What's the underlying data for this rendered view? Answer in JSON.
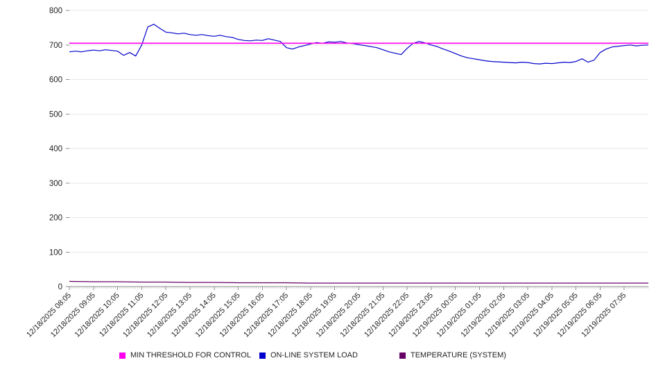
{
  "chart_data": {
    "type": "line",
    "title": "",
    "xlabel": "",
    "ylabel": "",
    "ylim": [
      0,
      800
    ],
    "y_ticks": [
      0,
      100,
      200,
      300,
      400,
      500,
      600,
      700,
      800
    ],
    "grid": "horizontal",
    "legend_position": "bottom",
    "domain_hours": 24,
    "x_minor_tick_minutes": 5,
    "x_tick_labels": [
      "12/18/2025 08:05",
      "12/18/2025 09:05",
      "12/18/2025 10:05",
      "12/18/2025 11:05",
      "12/18/2025 12:05",
      "12/18/2025 13:05",
      "12/18/2025 14:05",
      "12/18/2025 15:05",
      "12/18/2025 16:05",
      "12/18/2025 17:05",
      "12/18/2025 18:05",
      "12/18/2025 19:05",
      "12/18/2025 20:05",
      "12/18/2025 21:05",
      "12/18/2025 22:05",
      "12/18/2025 23:05",
      "12/19/2025 00:05",
      "12/19/2025 01:05",
      "12/19/2025 02:05",
      "12/19/2025 03:05",
      "12/19/2025 04:05",
      "12/19/2025 05:05",
      "12/19/2025 06:05",
      "12/19/2025 07:05"
    ],
    "series": [
      {
        "name": "MIN THRESHOLD FOR CONTROL",
        "color": "#ff00ee",
        "value": 705
      },
      {
        "name": "ON-LINE SYSTEM LOAD",
        "color": "#0000cc",
        "step_minutes": 15,
        "values": [
          680,
          682,
          680,
          683,
          685,
          683,
          686,
          684,
          682,
          670,
          678,
          668,
          700,
          752,
          760,
          748,
          737,
          735,
          732,
          734,
          730,
          728,
          730,
          727,
          725,
          728,
          724,
          722,
          716,
          713,
          712,
          714,
          713,
          718,
          714,
          710,
          692,
          688,
          694,
          698,
          703,
          707,
          705,
          709,
          708,
          710,
          706,
          704,
          701,
          698,
          695,
          692,
          686,
          680,
          676,
          672,
          690,
          705,
          710,
          706,
          700,
          695,
          688,
          682,
          675,
          668,
          663,
          660,
          657,
          654,
          652,
          651,
          650,
          649,
          648,
          650,
          649,
          646,
          645,
          647,
          646,
          648,
          650,
          649,
          652,
          660,
          650,
          656,
          678,
          688,
          694,
          696,
          698,
          700,
          697,
          699,
          700
        ]
      },
      {
        "name": "TEMPERATURE (SYSTEM)",
        "color": "#660066",
        "step_minutes": 60,
        "values": [
          15,
          14,
          14,
          13,
          13,
          12,
          12,
          11,
          11,
          11,
          10,
          10,
          10,
          10,
          10,
          10,
          10,
          10,
          10,
          10,
          10,
          10,
          10,
          10,
          10
        ]
      }
    ]
  }
}
